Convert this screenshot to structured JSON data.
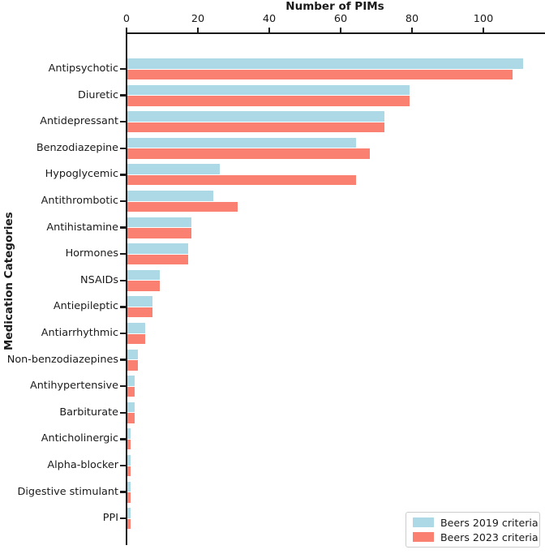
{
  "chart_data": {
    "type": "bar",
    "orientation": "horizontal",
    "xlabel": "Number of PIMs",
    "ylabel": "Medication Categories",
    "x_ticks": [
      0,
      20,
      40,
      60,
      80,
      100
    ],
    "xlim": [
      0,
      117
    ],
    "grid": false,
    "legend_position": "lower right",
    "categories": [
      "Antipsychotic",
      "Diuretic",
      "Antidepressant",
      "Benzodiazepine",
      "Hypoglycemic",
      "Antithrombotic",
      "Antihistamine",
      "Hormones",
      "NSAIDs",
      "Antiepileptic",
      "Antiarrhythmic",
      "Non-benzodiazepines",
      "Antihypertensive",
      "Barbiturate",
      "Anticholinergic",
      "Alpha-blocker",
      "Digestive stimulant",
      "PPI"
    ],
    "series": [
      {
        "name": "Beers 2019 criteria",
        "color": "#ADD8E6",
        "values": [
          111,
          79,
          72,
          64,
          26,
          24,
          18,
          17,
          9,
          7,
          5,
          3,
          2,
          2,
          1,
          1,
          1,
          1
        ]
      },
      {
        "name": "Beers 2023 criteria",
        "color": "#FA8072",
        "values": [
          108,
          79,
          72,
          68,
          64,
          31,
          18,
          17,
          9,
          7,
          5,
          3,
          2,
          2,
          1,
          1,
          1,
          1
        ]
      }
    ]
  },
  "colors": {
    "axis": "#1a1a1a",
    "text": "#1a1a1a",
    "legend_border": "#cccccc",
    "background": "#ffffff"
  }
}
